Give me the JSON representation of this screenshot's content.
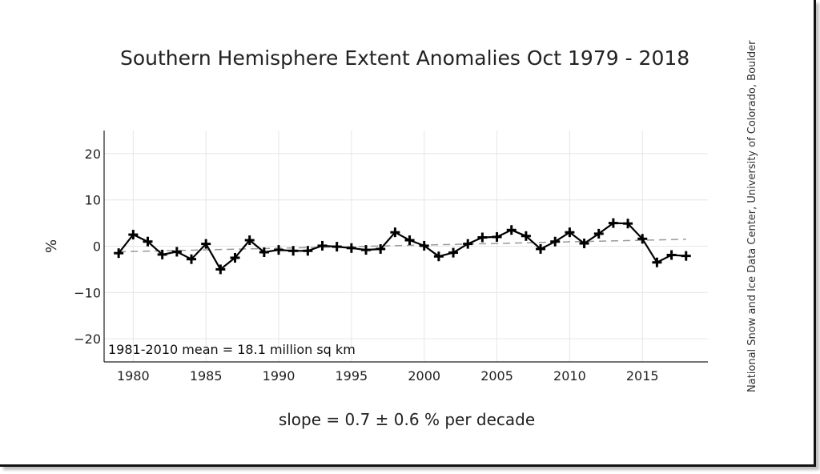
{
  "chart_data": {
    "type": "line",
    "title": "Southern Hemisphere Extent Anomalies Oct 1979 - 2018",
    "ylabel": "%",
    "xlabel": "slope = 0.7 ± 0.6 % per decade",
    "credit": "National Snow and Ice Data Center, University of Colorado, Boulder",
    "annotation": "1981-2010 mean = 18.1 million sq km",
    "xlim": [
      1978,
      2019.5
    ],
    "ylim": [
      -25,
      25
    ],
    "xticks": [
      1980,
      1985,
      1990,
      1995,
      2000,
      2005,
      2010,
      2015
    ],
    "yticks": [
      20,
      10,
      0,
      -10,
      -20
    ],
    "ytick_labels": [
      "20",
      "10",
      "0",
      "−10",
      "−20"
    ],
    "grid": true,
    "series": [
      {
        "name": "",
        "style": "solid line with plus markers",
        "color": "#000000",
        "x": [
          1979,
          1980,
          1981,
          1982,
          1983,
          1984,
          1985,
          1986,
          1987,
          1988,
          1989,
          1990,
          1991,
          1992,
          1993,
          1994,
          1995,
          1996,
          1997,
          1998,
          1999,
          2000,
          2001,
          2002,
          2003,
          2004,
          2005,
          2006,
          2007,
          2008,
          2009,
          2010,
          2011,
          2012,
          2013,
          2014,
          2015,
          2016,
          2017,
          2018
        ],
        "y": [
          -1.5,
          2.5,
          1.0,
          -1.8,
          -1.2,
          -2.8,
          0.5,
          -5.0,
          -2.5,
          1.3,
          -1.3,
          -0.8,
          -1.0,
          -1.0,
          0.1,
          -0.1,
          -0.4,
          -0.8,
          -0.6,
          3.0,
          1.3,
          0.1,
          -2.2,
          -1.4,
          0.5,
          1.9,
          2.0,
          3.5,
          2.2,
          -0.6,
          1.0,
          3.0,
          0.6,
          2.7,
          5.0,
          4.9,
          1.6,
          -3.5,
          -1.9,
          -2.1
        ]
      },
      {
        "name": "",
        "style": "dashed trend line",
        "color": "#999999",
        "x": [
          1979,
          2018
        ],
        "y": [
          -1.2,
          1.5
        ]
      }
    ]
  }
}
